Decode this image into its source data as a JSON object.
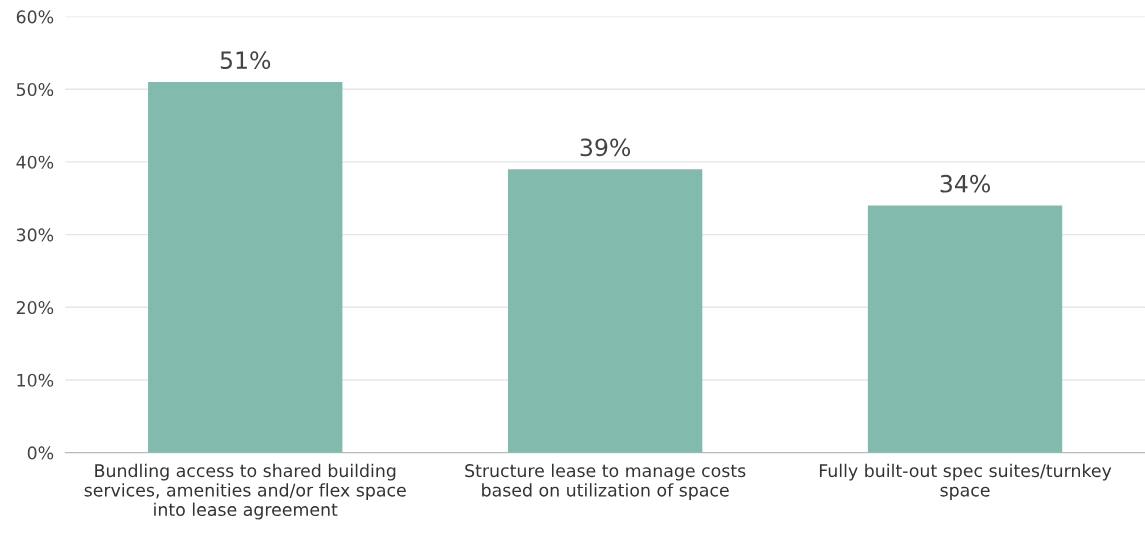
{
  "chart_data": {
    "type": "bar",
    "categories": [
      "Bundling access to shared building\nservices, amenities and/or flex space\ninto lease agreement",
      "Structure lease to manage costs\nbased on utilization of space",
      "Fully built-out spec suites/turnkey\nspace"
    ],
    "values": [
      51,
      39,
      34
    ],
    "color": "#82bbad",
    "value_labels": [
      "51%",
      "39%",
      "34%"
    ],
    "ylim": [
      0,
      60
    ],
    "yticks": [
      {
        "value": 0,
        "label": "0%"
      },
      {
        "value": 10,
        "label": "10%"
      },
      {
        "value": 20,
        "label": "20%"
      },
      {
        "value": 30,
        "label": "30%"
      },
      {
        "value": 40,
        "label": "40%"
      },
      {
        "value": 50,
        "label": "50%"
      },
      {
        "value": 60,
        "label": "60%"
      }
    ],
    "grid": "y"
  }
}
